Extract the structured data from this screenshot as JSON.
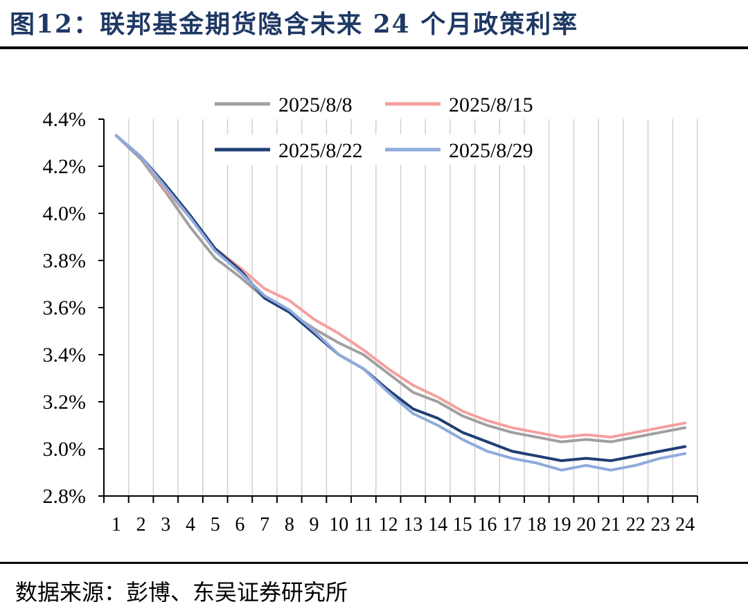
{
  "header": {
    "title": "图12：联邦基金期货隐含未来 24 个月政策利率"
  },
  "footer": {
    "source": "数据来源：彭博、东吴证券研究所"
  },
  "chart_data": {
    "type": "line",
    "title": "",
    "xlabel": "",
    "ylabel": "",
    "x": [
      1,
      2,
      3,
      4,
      5,
      6,
      7,
      8,
      9,
      10,
      11,
      12,
      13,
      14,
      15,
      16,
      17,
      18,
      19,
      20,
      21,
      22,
      23,
      24
    ],
    "x_tick_labels": [
      "1",
      "2",
      "3",
      "4",
      "5",
      "6",
      "7",
      "8",
      "9",
      "10",
      "11",
      "12",
      "13",
      "14",
      "15",
      "16",
      "17",
      "18",
      "19",
      "20",
      "21",
      "22",
      "23",
      "24"
    ],
    "ylim": [
      2.8,
      4.4
    ],
    "y_ticks": [
      2.8,
      3.0,
      3.2,
      3.4,
      3.6,
      3.8,
      4.0,
      4.2,
      4.4
    ],
    "y_tick_labels": [
      "2.8%",
      "3.0%",
      "3.2%",
      "3.4%",
      "3.6%",
      "3.8%",
      "4.0%",
      "4.2%",
      "4.4%"
    ],
    "grid": "vertical",
    "legend_position": "top",
    "series": [
      {
        "name": "2025/8/8",
        "color": "#a0a0a0",
        "values": [
          4.33,
          4.23,
          4.09,
          3.94,
          3.81,
          3.73,
          3.64,
          3.58,
          3.51,
          3.45,
          3.4,
          3.32,
          3.24,
          3.2,
          3.14,
          3.1,
          3.07,
          3.05,
          3.03,
          3.04,
          3.03,
          3.05,
          3.07,
          3.09
        ]
      },
      {
        "name": "2025/8/15",
        "color": "#f4a0a0",
        "values": [
          4.33,
          4.24,
          4.1,
          3.98,
          3.85,
          3.77,
          3.68,
          3.63,
          3.55,
          3.49,
          3.42,
          3.34,
          3.27,
          3.22,
          3.16,
          3.12,
          3.09,
          3.07,
          3.05,
          3.06,
          3.05,
          3.07,
          3.09,
          3.11
        ]
      },
      {
        "name": "2025/8/22",
        "color": "#1f3f74",
        "values": [
          4.33,
          4.24,
          4.12,
          3.99,
          3.85,
          3.76,
          3.64,
          3.58,
          3.49,
          3.4,
          3.34,
          3.25,
          3.17,
          3.13,
          3.07,
          3.03,
          2.99,
          2.97,
          2.95,
          2.96,
          2.95,
          2.97,
          2.99,
          3.01
        ]
      },
      {
        "name": "2025/8/29",
        "color": "#8faadc",
        "values": [
          4.33,
          4.24,
          4.11,
          3.98,
          3.84,
          3.75,
          3.65,
          3.59,
          3.5,
          3.4,
          3.34,
          3.24,
          3.15,
          3.1,
          3.04,
          2.99,
          2.96,
          2.94,
          2.91,
          2.93,
          2.91,
          2.93,
          2.96,
          2.98
        ]
      }
    ]
  }
}
